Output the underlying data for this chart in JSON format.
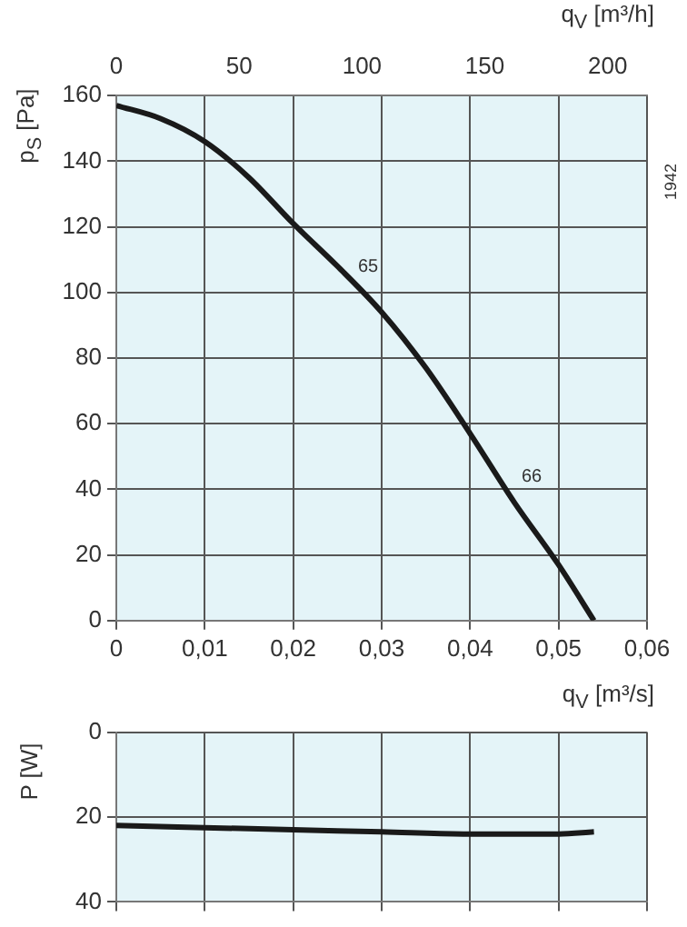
{
  "chart_data": [
    {
      "type": "line",
      "xlabel": "q$_{V}$ [m³/s]",
      "x2label": "q$_{V}$ [m³/h]",
      "ylabel": "p$_{S}$ [Pa]",
      "x": [
        0,
        0.005,
        0.01,
        0.015,
        0.02,
        0.025,
        0.03,
        0.035,
        0.04,
        0.045,
        0.05,
        0.054
      ],
      "series": [
        {
          "color": "#1a1a1a",
          "values": [
            157,
            153,
            146,
            135,
            121,
            108,
            94,
            77,
            57,
            36,
            17,
            0
          ]
        }
      ],
      "xlim": [
        0,
        0.06
      ],
      "xticks": [
        0,
        {
          "value": 0.01,
          "label": "0,01"
        },
        {
          "value": 0.02,
          "label": "0,02"
        },
        {
          "value": 0.03,
          "label": "0,03"
        },
        {
          "value": 0.04,
          "label": "0,04"
        },
        {
          "value": 0.05,
          "label": "0,05"
        },
        {
          "value": 0.06,
          "label": "0,06"
        }
      ],
      "ylim": [
        0,
        160
      ],
      "yticks": [
        0,
        20,
        40,
        60,
        80,
        100,
        120,
        140,
        160
      ],
      "x2lim": [
        0,
        216
      ],
      "x2ticks": [
        0,
        50,
        100,
        150,
        200
      ],
      "grid": true,
      "annotations": [
        {
          "text": "65",
          "x": 0.0265,
          "y": 104
        },
        {
          "text": "66",
          "x": 0.045,
          "y": 40
        },
        "1942"
      ]
    },
    {
      "type": "line",
      "ylabel": "P [W]",
      "x": [
        0,
        0.01,
        0.02,
        0.03,
        0.04,
        0.05,
        0.054
      ],
      "series": [
        {
          "color": "#1a1a1a",
          "values": [
            22,
            22.5,
            23,
            23.5,
            24,
            24,
            23.5
          ]
        }
      ],
      "xlim": [
        0,
        0.06
      ],
      "xticks": [
        0,
        0.01,
        0.02,
        0.03,
        0.04,
        0.05,
        0.06
      ],
      "ylim": [
        40,
        0
      ],
      "yticks": [
        0,
        20,
        40
      ],
      "grid": true,
      "tick_labels": "y"
    }
  ]
}
